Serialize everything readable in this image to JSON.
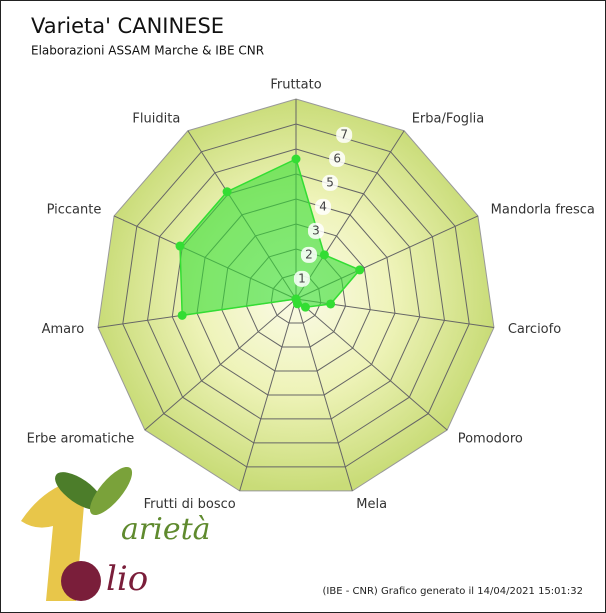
{
  "chart_data": {
    "type": "radar",
    "title": "Varieta' CANINESE",
    "subtitle": "Elaborazioni ASSAM Marche & IBE CNR",
    "categories": [
      "Fruttato",
      "Erba/Foglia",
      "Mandorla fresca",
      "Carciofo",
      "Pomodoro",
      "Mela",
      "Frutti di bosco",
      "Erbe aromatiche",
      "Amaro",
      "Piccante",
      "Fluidita"
    ],
    "values": [
      5.6,
      2.1,
      2.8,
      1.4,
      0.5,
      0.2,
      0,
      0,
      4.6,
      5.1,
      5.1
    ],
    "color": "#33dd33",
    "ylim": [
      0,
      8
    ],
    "yticks": [
      1,
      2,
      3,
      4,
      5,
      6,
      7
    ],
    "grid": true,
    "footer": "(IBE - CNR) Grafico generato il 14/04/2021 15:01:32",
    "logo": {
      "word1": "arietà",
      "word2": "lio"
    }
  }
}
